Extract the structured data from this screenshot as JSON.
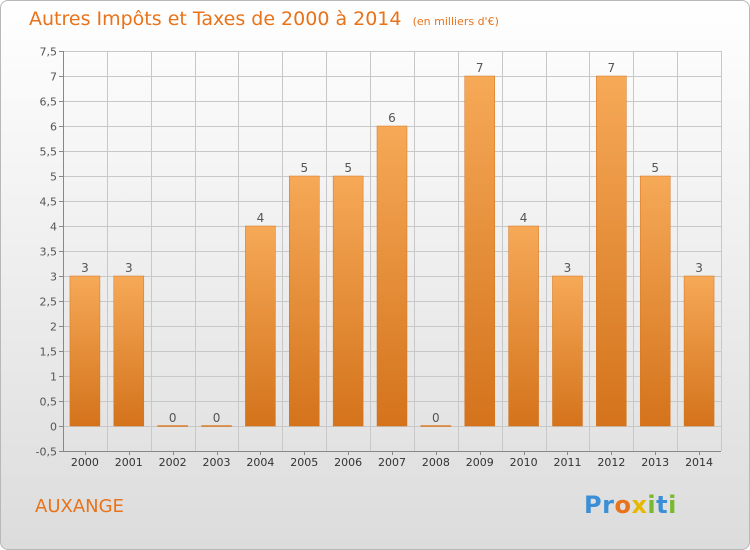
{
  "header": {
    "title": "Autres Impôts et Taxes de 2000 à 2014",
    "subtitle": "(en milliers d'€)"
  },
  "footer": {
    "town": "AUXANGE",
    "logo_text": "Proxiti",
    "logo_letters": [
      {
        "ch": "P",
        "color": "#3a8fd6"
      },
      {
        "ch": "r",
        "color": "#3a8fd6"
      },
      {
        "ch": "o",
        "color": "#e8731a"
      },
      {
        "ch": "x",
        "color": "#e6b800"
      },
      {
        "ch": "i",
        "color": "#7ab82e"
      },
      {
        "ch": "t",
        "color": "#3a8fd6"
      },
      {
        "ch": "i",
        "color": "#7ab82e"
      }
    ]
  },
  "chart_data": {
    "type": "bar",
    "title": "Autres Impôts et Taxes de 2000 à 2014",
    "subtitle": "(en milliers d'€)",
    "xlabel": "",
    "ylabel": "",
    "categories": [
      "2000",
      "2001",
      "2002",
      "2003",
      "2004",
      "2005",
      "2006",
      "2007",
      "2008",
      "2009",
      "2010",
      "2011",
      "2012",
      "2013",
      "2014"
    ],
    "values": [
      3,
      3,
      0,
      0,
      4,
      5,
      5,
      6,
      0,
      7,
      4,
      3,
      7,
      5,
      3
    ],
    "data_labels": [
      "3",
      "3",
      "0",
      "0",
      "4",
      "5",
      "5",
      "6",
      "0",
      "7",
      "4",
      "3",
      "7",
      "5",
      "3"
    ],
    "ylim": [
      -0.5,
      7.5
    ],
    "yticks": [
      -0.5,
      0,
      0.5,
      1,
      1.5,
      2,
      2.5,
      3,
      3.5,
      4,
      4.5,
      5,
      5.5,
      6,
      6.5,
      7,
      7.5
    ],
    "ytick_labels": [
      "-0,5",
      "0",
      "0,5",
      "1",
      "1,5",
      "2",
      "2,5",
      "3",
      "3,5",
      "4",
      "4,5",
      "5",
      "5,5",
      "6",
      "6,5",
      "7",
      "7,5"
    ],
    "grid": true,
    "colors": {
      "bar_light": "#f6a957",
      "bar_dark": "#d4731c",
      "grid": "#c8c8c8",
      "axis": "#888888",
      "text": "#555555",
      "accent": "#e8731a"
    }
  }
}
